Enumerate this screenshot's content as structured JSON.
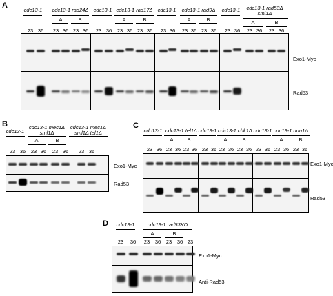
{
  "panelA": {
    "label": "A",
    "genotypes": [
      "cdc13-1",
      "cdc13-1 rad24Δ",
      "cdc13-1",
      "cdc13-1 rad17Δ",
      "cdc13-1",
      "cdc13-1 rad9Δ",
      "cdc13-1",
      "cdc13-1 rad53Δ",
      "sml1Δ"
    ],
    "sub": [
      "A",
      "B",
      "A",
      "B",
      "A",
      "B",
      "A",
      "B"
    ],
    "lanes": [
      "23",
      "36",
      "23",
      "36",
      "23",
      "36",
      "23",
      "36",
      "23",
      "36",
      "23",
      "36",
      "23",
      "36",
      "23",
      "36",
      "23",
      "36",
      "23",
      "36",
      "23",
      "36",
      "23",
      "36"
    ],
    "markers": [
      "Exo1-Myc",
      "Rad53"
    ]
  },
  "panelB": {
    "label": "B",
    "genotypes": [
      "cdc13-1",
      "cdc13-1 mec1Δ",
      "sml1Δ",
      "cdc13-1 mec1Δ",
      "sml1Δ tel1Δ"
    ],
    "sub": [
      "A",
      "B"
    ],
    "lanes": [
      "23",
      "36",
      "23",
      "36",
      "23",
      "36",
      "23",
      "36"
    ],
    "markers": [
      "Exo1-Myc",
      "Rad53"
    ]
  },
  "panelC": {
    "label": "C",
    "genotypes": [
      "cdc13-1",
      "cdc13-1 tel1Δ",
      "cdc13-1",
      "cdc13-1 chk1Δ",
      "cdc13-1",
      "cdc13-1 dun1Δ"
    ],
    "sub": [
      "A",
      "B",
      "A",
      "B",
      "A",
      "B"
    ],
    "lanes": [
      "23",
      "36",
      "23",
      "36",
      "23",
      "36",
      "23",
      "36",
      "23",
      "36",
      "23",
      "36",
      "23",
      "36",
      "23",
      "36",
      "23",
      "36"
    ],
    "markers": [
      "Exo1-Myc",
      "Rad53"
    ]
  },
  "panelD": {
    "label": "D",
    "genotypes": [
      "cdc13-1",
      "cdc13-1 rad53KD"
    ],
    "sub": [
      "A",
      "B"
    ],
    "lanes": [
      "23",
      "36",
      "23",
      "36",
      "23",
      "36",
      "23"
    ],
    "markers": [
      "Exo1-Myc",
      "Anti-Rad53"
    ]
  }
}
